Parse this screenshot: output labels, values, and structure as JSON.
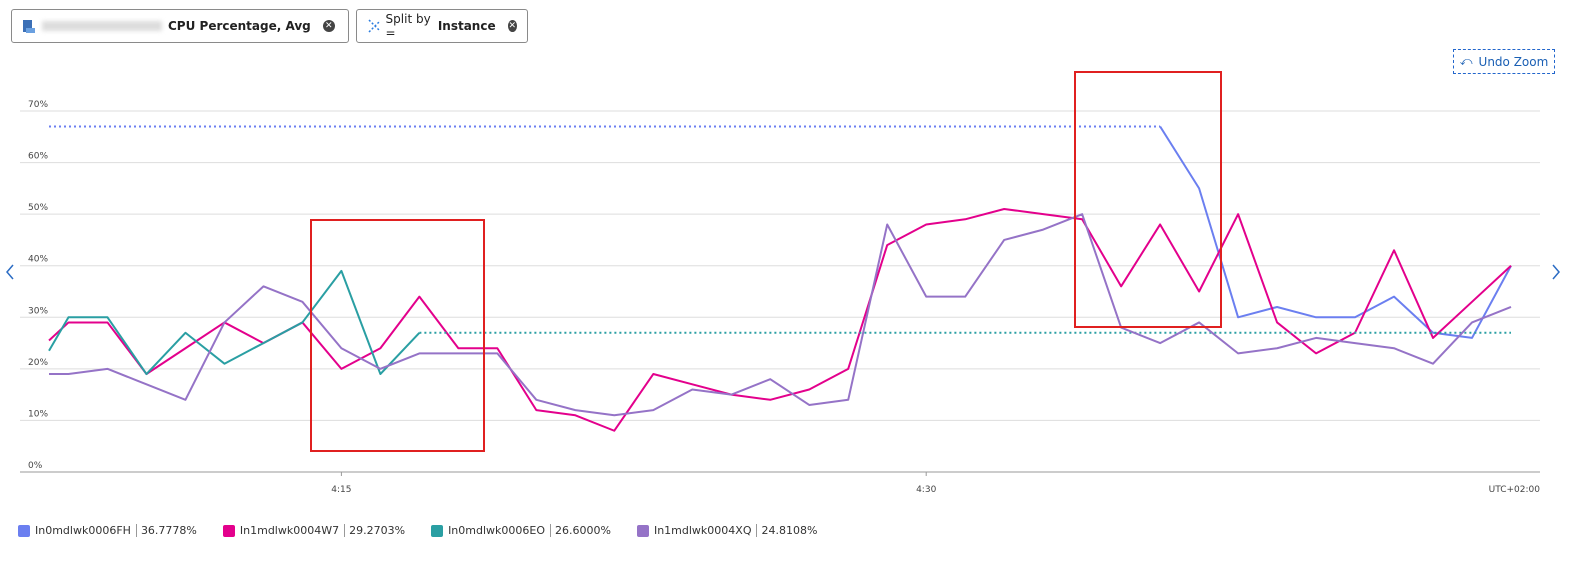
{
  "header": {
    "metric": "CPU Percentage, Avg",
    "split_label": "Split by =",
    "split_value": "Instance",
    "undo": "Undo Zoom"
  },
  "chart_data": {
    "type": "line",
    "x": [
      7.5,
      8,
      9,
      10,
      11,
      12,
      13,
      14,
      15,
      16,
      17,
      18,
      19,
      20,
      21,
      22,
      23,
      24,
      25,
      26,
      27,
      28,
      29,
      30,
      31,
      32,
      33,
      34,
      35,
      36,
      37,
      38,
      39,
      40,
      41,
      42,
      43,
      44,
      45
    ],
    "xlim": [
      7.5,
      45
    ],
    "xticks": [
      {
        "value": 15,
        "label": "4:15"
      },
      {
        "value": 30,
        "label": "4:30"
      }
    ],
    "timezone": "UTC+02:00",
    "ylim": [
      0,
      70
    ],
    "yticks": [
      {
        "value": 0,
        "label": "0%"
      },
      {
        "value": 10,
        "label": "10%"
      },
      {
        "value": 20,
        "label": "20%"
      },
      {
        "value": 30,
        "label": "30%"
      },
      {
        "value": 40,
        "label": "40%"
      },
      {
        "value": 50,
        "label": "50%"
      },
      {
        "value": 60,
        "label": "60%"
      },
      {
        "value": 70,
        "label": "70%"
      }
    ],
    "grid": true,
    "series": [
      {
        "name": "In0mdlwk0006FH",
        "summary": "36.7778%",
        "color": "#6b7ff0",
        "values": [
          null,
          null,
          null,
          null,
          null,
          null,
          null,
          null,
          null,
          null,
          null,
          null,
          null,
          null,
          null,
          null,
          null,
          null,
          null,
          null,
          null,
          null,
          null,
          null,
          null,
          null,
          null,
          null,
          null,
          67,
          55,
          30,
          32,
          30,
          30,
          34,
          27,
          26,
          40
        ]
      },
      {
        "name": "In1mdlwk0004W7",
        "summary": "29.2703%",
        "color": "#e3008c",
        "values": [
          25.5,
          29,
          29,
          19,
          24,
          29,
          25,
          29,
          20,
          24,
          34,
          24,
          24,
          12,
          11,
          8,
          19,
          17,
          15,
          14,
          16,
          20,
          44,
          48,
          49,
          51,
          50,
          49,
          36,
          48,
          35,
          50,
          29,
          23,
          27,
          43,
          26,
          33,
          40
        ]
      },
      {
        "name": "In0mdlwk0006EO",
        "summary": "26.6000%",
        "color": "#2a9fa3",
        "values": [
          23.5,
          30,
          30,
          19,
          27,
          21,
          25,
          29,
          39,
          19,
          27,
          null,
          null,
          null,
          null,
          null,
          null,
          null,
          null,
          null,
          null,
          null,
          null,
          null,
          null,
          null,
          null,
          null,
          null,
          null,
          null,
          null,
          null,
          null,
          null,
          null,
          null,
          null,
          null
        ]
      },
      {
        "name": "In1mdlwk0004XQ",
        "summary": "24.8108%",
        "color": "#9573c7",
        "values": [
          19,
          19,
          20,
          17,
          14,
          29,
          36,
          33,
          24,
          20,
          23,
          23,
          23,
          14,
          12,
          11,
          12,
          16,
          15,
          18,
          13,
          14,
          48,
          34,
          34,
          45,
          47,
          50,
          28,
          25,
          29,
          23,
          24,
          26,
          25,
          24,
          21,
          29,
          32
        ]
      }
    ]
  }
}
